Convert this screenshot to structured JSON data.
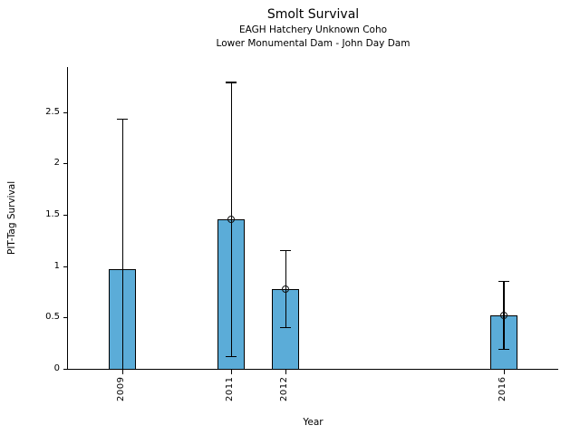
{
  "chart_data": {
    "type": "bar",
    "title": "Smolt Survival",
    "subtitle1": "EAGH Hatchery Unknown Coho",
    "subtitle2": "Lower Monumental Dam - John Day Dam",
    "xlabel": "Year",
    "ylabel": "PIT-Tag Survival",
    "xlim": [
      2008,
      2017
    ],
    "ylim": [
      0,
      2.94
    ],
    "yticks": [
      0,
      0.5,
      1,
      1.5,
      2,
      2.5
    ],
    "ytick_labels": [
      "0",
      "0.5",
      "1",
      "1.5",
      "2",
      "2.5"
    ],
    "grid": false,
    "legend": "none",
    "bar_color": "#5BACD8",
    "bar_edge_color": "#000000",
    "error_bar_color": "#000000",
    "points": [
      {
        "year": 2009,
        "label": "2009",
        "value": 0.97,
        "err_low": 0.0,
        "err_high": 2.43,
        "marker": false
      },
      {
        "year": 2011,
        "label": "2011",
        "value": 1.46,
        "err_low": 0.12,
        "err_high": 2.79,
        "marker": true
      },
      {
        "year": 2012,
        "label": "2012",
        "value": 0.78,
        "err_low": 0.4,
        "err_high": 1.15,
        "marker": true
      },
      {
        "year": 2016,
        "label": "2016",
        "value": 0.52,
        "err_low": 0.19,
        "err_high": 0.85,
        "marker": true
      }
    ]
  }
}
